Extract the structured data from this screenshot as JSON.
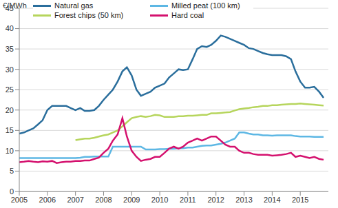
{
  "chart_data": {
    "type": "line",
    "y_label": "€/MWh",
    "x": [
      2005,
      2005.17,
      2005.33,
      2005.5,
      2005.67,
      2005.83,
      2006,
      2006.17,
      2006.33,
      2006.5,
      2006.67,
      2006.83,
      2007,
      2007.17,
      2007.33,
      2007.5,
      2007.67,
      2007.83,
      2008,
      2008.17,
      2008.33,
      2008.5,
      2008.67,
      2008.83,
      2009,
      2009.17,
      2009.33,
      2009.5,
      2009.67,
      2009.83,
      2010,
      2010.17,
      2010.33,
      2010.5,
      2010.67,
      2010.83,
      2011,
      2011.17,
      2011.33,
      2011.5,
      2011.67,
      2011.83,
      2012,
      2012.17,
      2012.33,
      2012.5,
      2012.67,
      2012.83,
      2013,
      2013.17,
      2013.33,
      2013.5,
      2013.67,
      2013.83,
      2014,
      2014.17,
      2014.33,
      2014.5,
      2014.67,
      2014.83,
      2015,
      2015.17,
      2015.33,
      2015.5,
      2015.67,
      2015.83
    ],
    "series": [
      {
        "name": "Natural gas",
        "color": "#2a6e9c",
        "values": [
          14.2,
          14.5,
          15,
          15.5,
          16.5,
          17.5,
          20,
          21,
          21,
          21,
          21,
          20.5,
          20,
          20.5,
          19.8,
          19.8,
          20,
          21,
          22.5,
          23.8,
          25,
          27,
          29.5,
          30.5,
          28.5,
          25,
          23.5,
          24,
          24.5,
          25.5,
          26,
          26.5,
          28,
          29,
          30,
          29.8,
          30,
          32.5,
          35,
          35.7,
          35.5,
          36,
          37,
          38.3,
          38,
          37.5,
          37,
          36.5,
          36,
          35.2,
          35,
          34.5,
          34,
          33.7,
          33.5,
          33.5,
          33.5,
          33.2,
          32.5,
          29.5,
          27,
          25.5,
          25.5,
          25.7,
          24.5,
          23
        ]
      },
      {
        "name": "Milled peat (100 km)",
        "color": "#5db7e4",
        "values": [
          8.2,
          8.2,
          8.2,
          8.2,
          8.2,
          8.2,
          8.2,
          8.2,
          8.2,
          8.2,
          8.2,
          8.2,
          8.2,
          8.3,
          8.5,
          8.5,
          8.6,
          8.6,
          8.6,
          8.6,
          11,
          11,
          11,
          11,
          11,
          11,
          11,
          10.3,
          10.3,
          10.3,
          10.4,
          10.4,
          10.5,
          10.5,
          10.6,
          10.6,
          10.8,
          10.8,
          11,
          11.2,
          11.3,
          11.3,
          11.5,
          11.7,
          12,
          12.5,
          13,
          14.5,
          14.5,
          14.2,
          14,
          14,
          13.8,
          13.8,
          13.7,
          13.8,
          13.8,
          13.8,
          13.8,
          13.6,
          13.5,
          13.5,
          13.5,
          13.4,
          13.4,
          13.4
        ]
      },
      {
        "name": "Forest chips (50 km)",
        "color": "#b6d55c",
        "values": [
          null,
          null,
          null,
          null,
          null,
          null,
          null,
          null,
          null,
          null,
          null,
          null,
          12.6,
          12.8,
          13,
          13,
          13.2,
          13.5,
          13.8,
          14,
          14.5,
          15,
          16,
          17,
          18,
          18.3,
          18.5,
          18.3,
          18.5,
          18.8,
          18.7,
          18.3,
          18.3,
          18.3,
          18.5,
          18.5,
          18.6,
          18.6,
          18.7,
          18.8,
          18.8,
          19.2,
          19.2,
          19.3,
          19.4,
          19.5,
          19.9,
          20.2,
          20.4,
          20.5,
          20.7,
          20.8,
          21,
          21,
          21.2,
          21.2,
          21.3,
          21.4,
          21.5,
          21.5,
          21.6,
          21.5,
          21.4,
          21.3,
          21.2,
          21.1
        ]
      },
      {
        "name": "Hard coal",
        "color": "#d4116e",
        "values": [
          7.2,
          7.3,
          7.5,
          7.3,
          7.2,
          7.4,
          7.3,
          7.5,
          7,
          7.2,
          7.3,
          7.3,
          7.5,
          7.5,
          7.6,
          7.6,
          8,
          8.3,
          9.5,
          10.5,
          12.5,
          14,
          18,
          13.5,
          10,
          8.5,
          7.5,
          7.8,
          8,
          8.5,
          8.5,
          9.5,
          10.5,
          11,
          10.5,
          11,
          12,
          12.5,
          13,
          12.5,
          13,
          13.5,
          13.5,
          12.5,
          11.5,
          11,
          11,
          10,
          9.5,
          9.5,
          9.2,
          9,
          9,
          9,
          8.8,
          8.9,
          9,
          9.2,
          9.5,
          8.5,
          8.8,
          8.5,
          8.2,
          8.5,
          8,
          7.8
        ]
      }
    ],
    "xlim": [
      2005,
      2016
    ],
    "xticks": [
      2005,
      2006,
      2007,
      2008,
      2009,
      2010,
      2011,
      2012,
      2013,
      2014,
      2015
    ],
    "ylim": [
      0,
      45
    ],
    "yticks": [
      0,
      5,
      10,
      15,
      20,
      25,
      30,
      35,
      40,
      45
    ],
    "grid": true,
    "legend": "upper left"
  }
}
